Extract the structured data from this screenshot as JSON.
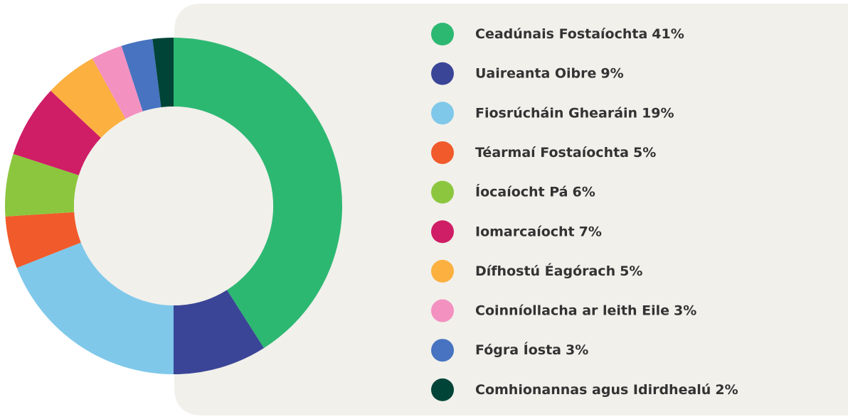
{
  "chart_data": {
    "type": "donut",
    "categories": [
      "Ceadúnais Fostaíochta",
      "Uaireanta Oibre",
      "Fiosrúcháin Ghearáin",
      "Téarmaí Fostaíochta",
      "Íocaíocht Pá",
      "Iomarcaíocht",
      "Dífhostú Éagórach",
      "Coinníollacha ar leith Eile",
      "Fógra Íosta",
      "Comhionannas agus Idirdhealú"
    ],
    "values": [
      41,
      9,
      19,
      5,
      6,
      7,
      5,
      3,
      3,
      2
    ],
    "value_labels": [
      "41%",
      "9%",
      "19%",
      "5%",
      "6%",
      "7%",
      "5%",
      "3%",
      "3%",
      "2%"
    ],
    "colors": [
      "#2db872",
      "#3a4597",
      "#7fc8ea",
      "#f15a2b",
      "#8cc63f",
      "#cf1d66",
      "#fbb040",
      "#f391c1",
      "#4773c0",
      "#004438"
    ],
    "legend": "right"
  }
}
